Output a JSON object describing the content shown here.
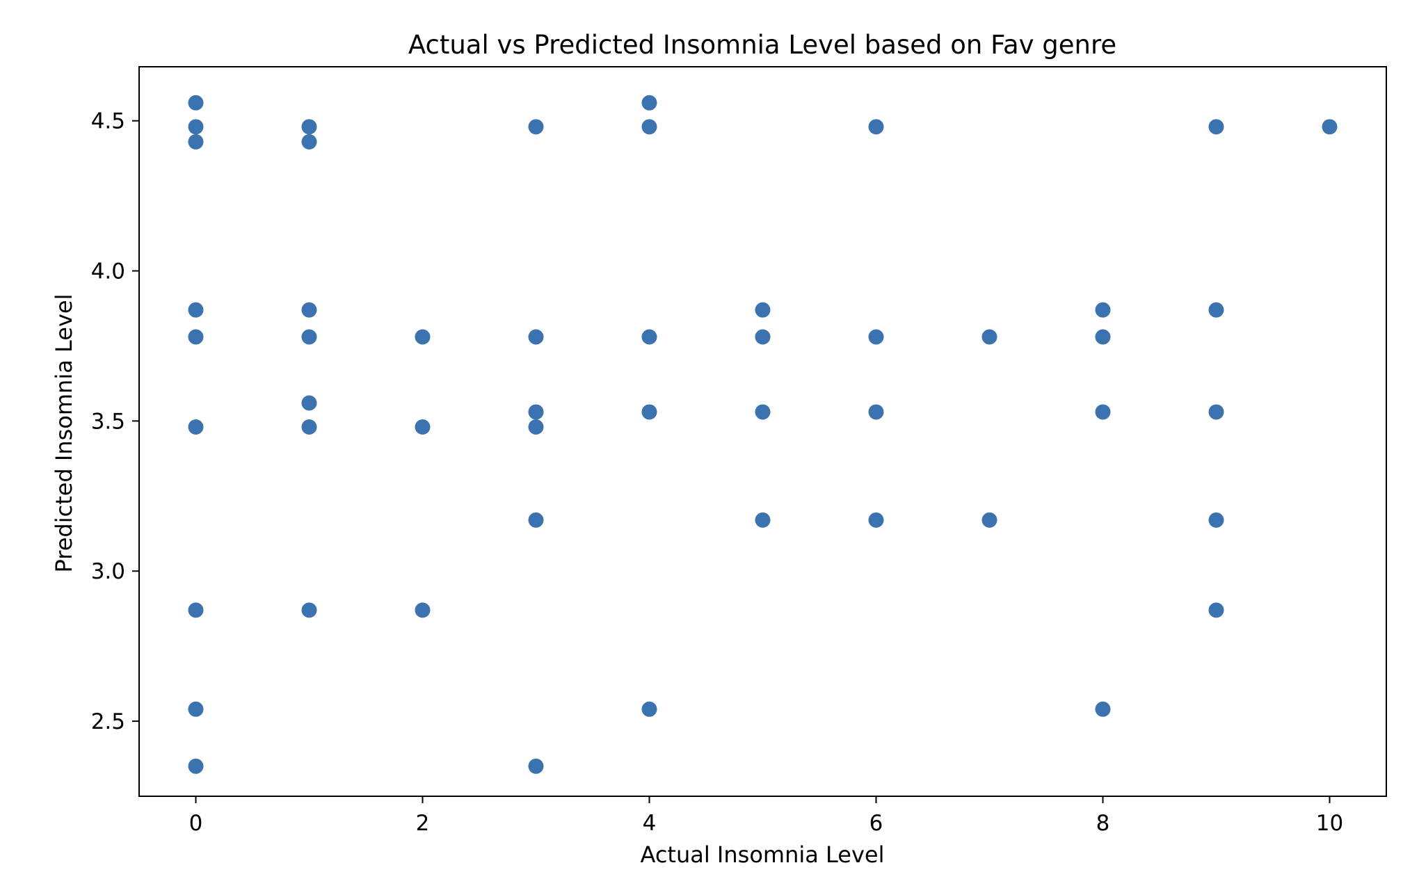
{
  "chart_data": {
    "type": "scatter",
    "title": "Actual vs Predicted Insomnia Level based on Fav genre",
    "xlabel": "Actual Insomnia Level",
    "ylabel": "Predicted Insomnia Level",
    "xlim": [
      -0.5,
      10.5
    ],
    "ylim": [
      2.25,
      4.68
    ],
    "xticks": [
      0,
      2,
      4,
      6,
      8,
      10
    ],
    "xtick_labels": [
      "0",
      "2",
      "4",
      "6",
      "8",
      "10"
    ],
    "yticks": [
      2.5,
      3.0,
      3.5,
      4.0,
      4.5
    ],
    "ytick_labels": [
      "2.5",
      "3.0",
      "3.5",
      "4.0",
      "4.5"
    ],
    "grid": false,
    "legend": "none",
    "marker_color": "#3A73B0",
    "series": [
      {
        "points": [
          {
            "x": 0,
            "y": 4.56
          },
          {
            "x": 0,
            "y": 4.48
          },
          {
            "x": 0,
            "y": 4.43
          },
          {
            "x": 0,
            "y": 3.87
          },
          {
            "x": 0,
            "y": 3.78
          },
          {
            "x": 0,
            "y": 3.48
          },
          {
            "x": 0,
            "y": 2.87
          },
          {
            "x": 0,
            "y": 2.54
          },
          {
            "x": 0,
            "y": 2.35
          },
          {
            "x": 1,
            "y": 4.48
          },
          {
            "x": 1,
            "y": 4.43
          },
          {
            "x": 1,
            "y": 3.87
          },
          {
            "x": 1,
            "y": 3.78
          },
          {
            "x": 1,
            "y": 3.56
          },
          {
            "x": 1,
            "y": 3.48
          },
          {
            "x": 1,
            "y": 2.87
          },
          {
            "x": 2,
            "y": 3.78
          },
          {
            "x": 2,
            "y": 3.48
          },
          {
            "x": 2,
            "y": 2.87
          },
          {
            "x": 3,
            "y": 4.48
          },
          {
            "x": 3,
            "y": 3.78
          },
          {
            "x": 3,
            "y": 3.53
          },
          {
            "x": 3,
            "y": 3.48
          },
          {
            "x": 3,
            "y": 3.17
          },
          {
            "x": 3,
            "y": 2.35
          },
          {
            "x": 4,
            "y": 4.56
          },
          {
            "x": 4,
            "y": 4.48
          },
          {
            "x": 4,
            "y": 3.78
          },
          {
            "x": 4,
            "y": 3.53
          },
          {
            "x": 4,
            "y": 2.54
          },
          {
            "x": 5,
            "y": 3.87
          },
          {
            "x": 5,
            "y": 3.78
          },
          {
            "x": 5,
            "y": 3.53
          },
          {
            "x": 5,
            "y": 3.17
          },
          {
            "x": 6,
            "y": 4.48
          },
          {
            "x": 6,
            "y": 3.78
          },
          {
            "x": 6,
            "y": 3.53
          },
          {
            "x": 6,
            "y": 3.17
          },
          {
            "x": 7,
            "y": 3.78
          },
          {
            "x": 7,
            "y": 3.17
          },
          {
            "x": 8,
            "y": 3.87
          },
          {
            "x": 8,
            "y": 3.78
          },
          {
            "x": 8,
            "y": 3.53
          },
          {
            "x": 8,
            "y": 2.54
          },
          {
            "x": 9,
            "y": 4.48
          },
          {
            "x": 9,
            "y": 3.87
          },
          {
            "x": 9,
            "y": 3.53
          },
          {
            "x": 9,
            "y": 3.17
          },
          {
            "x": 9,
            "y": 2.87
          },
          {
            "x": 10,
            "y": 4.48
          }
        ]
      }
    ]
  }
}
